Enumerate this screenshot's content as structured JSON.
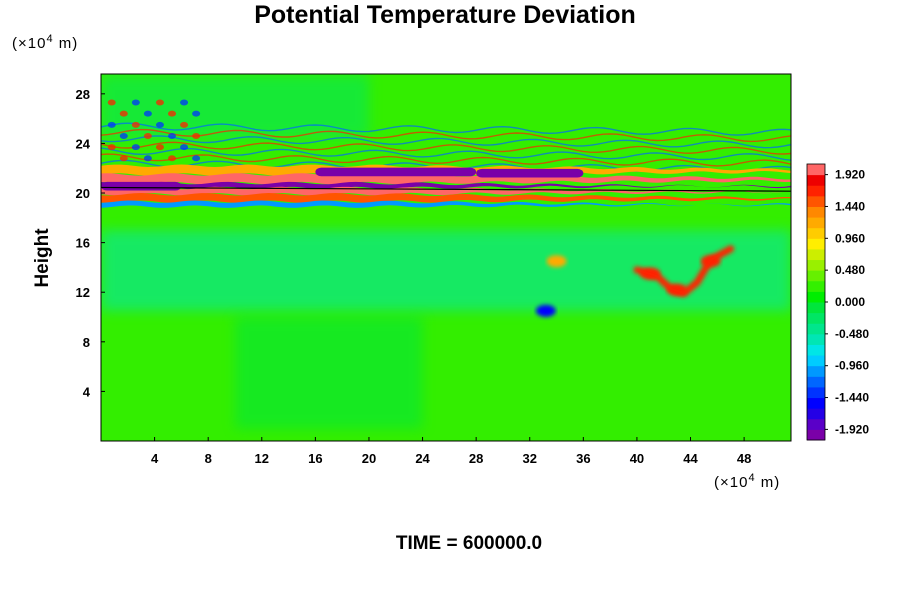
{
  "chart_data": {
    "type": "heatmap",
    "title": "Potential Temperature Deviation",
    "ylabel": "Height",
    "y_unit_prefix": "(×10",
    "y_unit_exp": "4",
    "y_unit_suffix": " m)",
    "x_unit_prefix": "(×10",
    "x_unit_exp": "4",
    "x_unit_suffix": " m)",
    "xlim": [
      0,
      51.5
    ],
    "ylim": [
      0,
      29.6
    ],
    "x_ticks": [
      4,
      8,
      12,
      16,
      20,
      24,
      28,
      32,
      36,
      40,
      44,
      48
    ],
    "y_ticks": [
      4,
      8,
      12,
      16,
      20,
      24,
      28
    ],
    "colorbar": {
      "min": -2.08,
      "max": 2.08,
      "step": 0.16,
      "tick_values": [
        1.92,
        1.44,
        0.96,
        0.48,
        0.0,
        -0.48,
        -0.96,
        -1.44,
        -1.92
      ],
      "tick_labels": [
        "1.920",
        "1.440",
        "0.960",
        "0.480",
        "0.000",
        "-0.480",
        "-0.960",
        "-1.440",
        "-1.920"
      ],
      "palette": [
        "#7a00a8",
        "#5a00c8",
        "#2400e6",
        "#0000ff",
        "#0033ff",
        "#0066ff",
        "#0099ff",
        "#00ccff",
        "#00e6e6",
        "#00e6b4",
        "#00e68c",
        "#00e664",
        "#00e63c",
        "#00ee00",
        "#33f000",
        "#66f000",
        "#99f000",
        "#ccee00",
        "#ffee00",
        "#ffcc00",
        "#ffaa00",
        "#ff8800",
        "#ff5500",
        "#ff2200",
        "#ee0000",
        "#ff6666"
      ]
    },
    "time_label": "TIME = 600000.0",
    "features": [
      {
        "kind": "layer",
        "desc": "band core",
        "y": 20.6,
        "value": 2.0
      },
      {
        "kind": "layer",
        "desc": "band lower",
        "y": 20.2,
        "value": -2.0
      },
      {
        "kind": "blob",
        "x": 41.0,
        "y": 13.5,
        "value": 1.6
      },
      {
        "kind": "blob",
        "x": 43.0,
        "y": 12.2,
        "value": 1.6
      },
      {
        "kind": "blob",
        "x": 45.5,
        "y": 14.5,
        "value": 1.6
      },
      {
        "kind": "blob",
        "x": 34.0,
        "y": 14.5,
        "value": 1.2
      },
      {
        "kind": "blob",
        "x": 33.2,
        "y": 10.5,
        "value": -1.6
      }
    ]
  }
}
